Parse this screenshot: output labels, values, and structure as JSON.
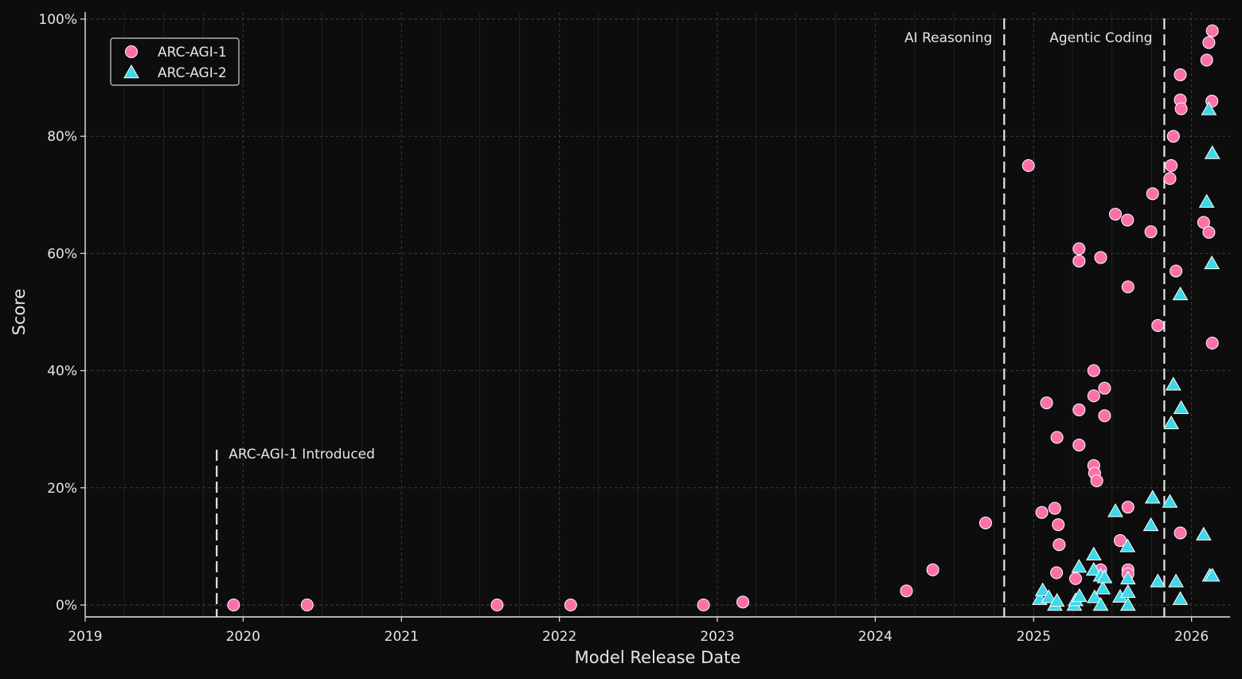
{
  "chart_data": {
    "type": "scatter",
    "xlabel": "Model Release Date",
    "ylabel": "Score",
    "xlim": [
      "2019-01-01",
      "2026-03-31"
    ],
    "ylim": [
      0,
      100
    ],
    "x_ticks": [
      "2019",
      "2020",
      "2021",
      "2022",
      "2023",
      "2024",
      "2025",
      "2026"
    ],
    "y_ticks": [
      "0%",
      "20%",
      "40%",
      "60%",
      "80%",
      "100%"
    ],
    "y_tick_values": [
      0,
      20,
      40,
      60,
      80,
      100
    ],
    "grid": true,
    "legend_position": "top-left",
    "annotations": [
      {
        "label": "ARC-AGI-1 Introduced",
        "date": "2019-11-01"
      },
      {
        "label": "AI Reasoning",
        "date": "2024-10-25"
      },
      {
        "label": "Agentic Coding",
        "date": "2025-10-30"
      }
    ],
    "series": [
      {
        "name": "ARC-AGI-1",
        "marker": "circle",
        "color": "#ff6fa8",
        "points": [
          [
            "2019-12-10",
            0
          ],
          [
            "2020-05-28",
            0
          ],
          [
            "2021-08-10",
            0
          ],
          [
            "2022-01-27",
            0
          ],
          [
            "2022-11-30",
            0
          ],
          [
            "2023-03-01",
            0.5
          ],
          [
            "2024-03-13",
            2.4
          ],
          [
            "2024-05-13",
            6
          ],
          [
            "2024-09-12",
            14
          ],
          [
            "2024-12-20",
            75
          ],
          [
            "2025-01-20",
            15.8
          ],
          [
            "2025-01-31",
            34.5
          ],
          [
            "2025-02-19",
            16.5
          ],
          [
            "2025-02-24",
            28.6
          ],
          [
            "2025-02-27",
            13.7
          ],
          [
            "2025-03-01",
            10.3
          ],
          [
            "2025-02-23",
            5.5
          ],
          [
            "2025-04-08",
            4.5
          ],
          [
            "2025-04-16",
            60.8
          ],
          [
            "2025-04-16",
            58.7
          ],
          [
            "2025-04-16",
            33.3
          ],
          [
            "2025-04-16",
            27.3
          ],
          [
            "2025-05-20",
            40
          ],
          [
            "2025-05-20",
            35.7
          ],
          [
            "2025-05-20",
            23.8
          ],
          [
            "2025-05-22",
            22.5
          ],
          [
            "2025-05-27",
            21.2
          ],
          [
            "2025-06-05",
            59.3
          ],
          [
            "2025-06-05",
            6
          ],
          [
            "2025-06-14",
            37
          ],
          [
            "2025-06-14",
            32.3
          ],
          [
            "2025-07-09",
            66.7
          ],
          [
            "2025-07-20",
            11
          ],
          [
            "2025-08-06",
            65.7
          ],
          [
            "2025-08-07",
            54.3
          ],
          [
            "2025-08-07",
            16.7
          ],
          [
            "2025-08-07",
            6
          ],
          [
            "2025-08-07",
            5.3
          ],
          [
            "2025-09-29",
            63.7
          ],
          [
            "2025-10-03",
            70.2
          ],
          [
            "2025-10-15",
            47.7
          ],
          [
            "2025-11-12",
            72.8
          ],
          [
            "2025-11-15",
            75
          ],
          [
            "2025-11-20",
            80
          ],
          [
            "2025-11-26",
            57
          ],
          [
            "2025-12-06",
            90.5
          ],
          [
            "2025-12-06",
            86.2
          ],
          [
            "2025-12-08",
            84.7
          ],
          [
            "2025-12-06",
            12.3
          ],
          [
            "2026-01-29",
            65.3
          ],
          [
            "2026-02-05",
            93
          ],
          [
            "2026-02-10",
            96
          ],
          [
            "2026-02-10",
            63.6
          ],
          [
            "2026-02-18",
            98
          ],
          [
            "2026-02-17",
            86
          ],
          [
            "2026-02-18",
            44.7
          ]
        ]
      },
      {
        "name": "ARC-AGI-2",
        "marker": "triangle",
        "color": "#3fd8e8",
        "points": [
          [
            "2025-01-15",
            1
          ],
          [
            "2025-01-22",
            2.5
          ],
          [
            "2025-02-05",
            1.3
          ],
          [
            "2025-02-19",
            0
          ],
          [
            "2025-02-24",
            0.7
          ],
          [
            "2025-04-05",
            0
          ],
          [
            "2025-04-08",
            0.8
          ],
          [
            "2025-04-16",
            6.5
          ],
          [
            "2025-04-17",
            1.5
          ],
          [
            "2025-05-20",
            8.6
          ],
          [
            "2025-05-20",
            6
          ],
          [
            "2025-05-22",
            1.3
          ],
          [
            "2025-06-05",
            5
          ],
          [
            "2025-06-05",
            0
          ],
          [
            "2025-06-10",
            2.8
          ],
          [
            "2025-06-14",
            4.7
          ],
          [
            "2025-07-09",
            16
          ],
          [
            "2025-07-20",
            1.4
          ],
          [
            "2025-08-06",
            10
          ],
          [
            "2025-08-07",
            4.5
          ],
          [
            "2025-08-07",
            2.2
          ],
          [
            "2025-08-07",
            0
          ],
          [
            "2025-09-29",
            13.6
          ],
          [
            "2025-10-03",
            18.3
          ],
          [
            "2025-10-15",
            4
          ],
          [
            "2025-11-12",
            17.6
          ],
          [
            "2025-11-15",
            31
          ],
          [
            "2025-11-20",
            37.6
          ],
          [
            "2025-11-26",
            4
          ],
          [
            "2025-12-06",
            53
          ],
          [
            "2025-12-08",
            33.6
          ],
          [
            "2025-12-06",
            1
          ],
          [
            "2026-01-29",
            12
          ],
          [
            "2026-02-05",
            68.8
          ],
          [
            "2026-02-10",
            84.6
          ],
          [
            "2026-02-12",
            5
          ],
          [
            "2026-02-17",
            58.3
          ],
          [
            "2026-02-18",
            77.1
          ],
          [
            "2026-02-18",
            5
          ]
        ]
      }
    ]
  }
}
